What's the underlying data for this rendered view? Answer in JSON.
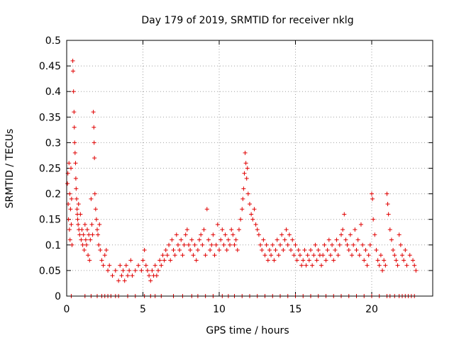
{
  "chart_data": {
    "type": "scatter",
    "title": "Day 179 of 2019, SRMTID for receiver nklg",
    "xlabel": "GPS time / hours",
    "ylabel": "SRMTID / TECUs",
    "xlim": [
      0,
      24
    ],
    "ylim": [
      0,
      0.5
    ],
    "xticks": [
      "0",
      "5",
      "10",
      "15",
      "20"
    ],
    "xtick_values": [
      0,
      5,
      10,
      15,
      20
    ],
    "yticks": [
      "0",
      "0.05",
      "0.1",
      "0.15",
      "0.2",
      "0.25",
      "0.3",
      "0.35",
      "0.4",
      "0.45",
      "0.5"
    ],
    "ytick_values": [
      0,
      0.05,
      0.1,
      0.15,
      0.2,
      0.25,
      0.3,
      0.35,
      0.4,
      0.45,
      0.5
    ],
    "grid": true,
    "legend": false,
    "marker": "plus",
    "color": "#e00000",
    "points": [
      [
        0.05,
        0.22
      ],
      [
        0.08,
        0.24
      ],
      [
        0.1,
        0.18
      ],
      [
        0.12,
        0.15
      ],
      [
        0.15,
        0.26
      ],
      [
        0.18,
        0.13
      ],
      [
        0.2,
        0.2
      ],
      [
        0.22,
        0.11
      ],
      [
        0.25,
        0.17
      ],
      [
        0.28,
        0.25
      ],
      [
        0.3,
        0.14
      ],
      [
        0.32,
        0.19
      ],
      [
        0.35,
        0.1
      ],
      [
        0.4,
        0.46
      ],
      [
        0.42,
        0.44
      ],
      [
        0.45,
        0.4
      ],
      [
        0.48,
        0.36
      ],
      [
        0.5,
        0.33
      ],
      [
        0.52,
        0.3
      ],
      [
        0.55,
        0.28
      ],
      [
        0.58,
        0.26
      ],
      [
        0.6,
        0.23
      ],
      [
        0.62,
        0.21
      ],
      [
        0.65,
        0.19
      ],
      [
        0.68,
        0.17
      ],
      [
        0.7,
        0.16
      ],
      [
        0.72,
        0.15
      ],
      [
        0.75,
        0.14
      ],
      [
        0.78,
        0.18
      ],
      [
        0.8,
        0.13
      ],
      [
        0.85,
        0.12
      ],
      [
        0.9,
        0.16
      ],
      [
        0.95,
        0.11
      ],
      [
        1.0,
        0.13
      ],
      [
        1.05,
        0.1
      ],
      [
        1.1,
        0.12
      ],
      [
        1.15,
        0.09
      ],
      [
        1.2,
        0.14
      ],
      [
        1.25,
        0.11
      ],
      [
        1.3,
        0.1
      ],
      [
        1.35,
        0.13
      ],
      [
        1.4,
        0.08
      ],
      [
        1.45,
        0.12
      ],
      [
        1.5,
        0.07
      ],
      [
        1.55,
        0.11
      ],
      [
        1.6,
        0.19
      ],
      [
        1.65,
        0.14
      ],
      [
        1.7,
        0.12
      ],
      [
        1.75,
        0.36
      ],
      [
        1.78,
        0.33
      ],
      [
        1.8,
        0.3
      ],
      [
        1.82,
        0.27
      ],
      [
        1.85,
        0.2
      ],
      [
        1.9,
        0.17
      ],
      [
        1.95,
        0.15
      ],
      [
        2.0,
        0.13
      ],
      [
        2.05,
        0.12
      ],
      [
        2.1,
        0.1
      ],
      [
        2.15,
        0.14
      ],
      [
        2.2,
        0.09
      ],
      [
        2.3,
        0.07
      ],
      [
        2.4,
        0.06
      ],
      [
        2.5,
        0.08
      ],
      [
        2.6,
        0.09
      ],
      [
        2.7,
        0.05
      ],
      [
        2.8,
        0.06
      ],
      [
        3.0,
        0.04
      ],
      [
        3.2,
        0.05
      ],
      [
        3.4,
        0.03
      ],
      [
        3.5,
        0.06
      ],
      [
        3.6,
        0.04
      ],
      [
        3.7,
        0.05
      ],
      [
        3.8,
        0.03
      ],
      [
        3.9,
        0.06
      ],
      [
        4.0,
        0.04
      ],
      [
        4.1,
        0.05
      ],
      [
        4.2,
        0.07
      ],
      [
        4.3,
        0.04
      ],
      [
        4.5,
        0.05
      ],
      [
        4.7,
        0.06
      ],
      [
        4.9,
        0.05
      ],
      [
        5.0,
        0.07
      ],
      [
        5.1,
        0.09
      ],
      [
        5.2,
        0.06
      ],
      [
        5.3,
        0.05
      ],
      [
        5.4,
        0.04
      ],
      [
        5.5,
        0.03
      ],
      [
        5.6,
        0.05
      ],
      [
        5.7,
        0.04
      ],
      [
        5.8,
        0.06
      ],
      [
        5.9,
        0.04
      ],
      [
        6.0,
        0.05
      ],
      [
        6.1,
        0.07
      ],
      [
        6.2,
        0.06
      ],
      [
        6.3,
        0.08
      ],
      [
        6.4,
        0.07
      ],
      [
        6.5,
        0.09
      ],
      [
        6.6,
        0.08
      ],
      [
        6.7,
        0.1
      ],
      [
        6.8,
        0.07
      ],
      [
        6.9,
        0.11
      ],
      [
        7.0,
        0.09
      ],
      [
        7.1,
        0.08
      ],
      [
        7.2,
        0.12
      ],
      [
        7.3,
        0.1
      ],
      [
        7.4,
        0.09
      ],
      [
        7.5,
        0.11
      ],
      [
        7.6,
        0.08
      ],
      [
        7.7,
        0.1
      ],
      [
        7.8,
        0.12
      ],
      [
        7.9,
        0.13
      ],
      [
        8.0,
        0.1
      ],
      [
        8.1,
        0.09
      ],
      [
        8.2,
        0.11
      ],
      [
        8.3,
        0.08
      ],
      [
        8.4,
        0.1
      ],
      [
        8.5,
        0.07
      ],
      [
        8.6,
        0.09
      ],
      [
        8.7,
        0.11
      ],
      [
        8.8,
        0.12
      ],
      [
        8.9,
        0.1
      ],
      [
        9.0,
        0.13
      ],
      [
        9.1,
        0.08
      ],
      [
        9.2,
        0.17
      ],
      [
        9.3,
        0.11
      ],
      [
        9.4,
        0.09
      ],
      [
        9.5,
        0.1
      ],
      [
        9.6,
        0.12
      ],
      [
        9.7,
        0.08
      ],
      [
        9.8,
        0.1
      ],
      [
        9.9,
        0.14
      ],
      [
        10.0,
        0.09
      ],
      [
        10.1,
        0.11
      ],
      [
        10.2,
        0.13
      ],
      [
        10.3,
        0.1
      ],
      [
        10.4,
        0.12
      ],
      [
        10.5,
        0.09
      ],
      [
        10.6,
        0.11
      ],
      [
        10.7,
        0.1
      ],
      [
        10.8,
        0.13
      ],
      [
        10.9,
        0.12
      ],
      [
        11.0,
        0.1
      ],
      [
        11.1,
        0.11
      ],
      [
        11.2,
        0.09
      ],
      [
        11.3,
        0.13
      ],
      [
        11.4,
        0.15
      ],
      [
        11.5,
        0.17
      ],
      [
        11.55,
        0.19
      ],
      [
        11.6,
        0.21
      ],
      [
        11.65,
        0.24
      ],
      [
        11.7,
        0.28
      ],
      [
        11.75,
        0.26
      ],
      [
        11.8,
        0.23
      ],
      [
        11.85,
        0.25
      ],
      [
        11.9,
        0.2
      ],
      [
        12.0,
        0.18
      ],
      [
        12.1,
        0.16
      ],
      [
        12.2,
        0.15
      ],
      [
        12.3,
        0.17
      ],
      [
        12.4,
        0.14
      ],
      [
        12.5,
        0.13
      ],
      [
        12.6,
        0.12
      ],
      [
        12.7,
        0.1
      ],
      [
        12.8,
        0.09
      ],
      [
        12.9,
        0.11
      ],
      [
        13.0,
        0.08
      ],
      [
        13.1,
        0.1
      ],
      [
        13.2,
        0.07
      ],
      [
        13.3,
        0.09
      ],
      [
        13.4,
        0.08
      ],
      [
        13.5,
        0.1
      ],
      [
        13.6,
        0.07
      ],
      [
        13.7,
        0.09
      ],
      [
        13.8,
        0.11
      ],
      [
        13.9,
        0.08
      ],
      [
        14.0,
        0.1
      ],
      [
        14.1,
        0.12
      ],
      [
        14.2,
        0.09
      ],
      [
        14.3,
        0.11
      ],
      [
        14.4,
        0.13
      ],
      [
        14.5,
        0.1
      ],
      [
        14.6,
        0.12
      ],
      [
        14.7,
        0.09
      ],
      [
        14.8,
        0.11
      ],
      [
        14.9,
        0.08
      ],
      [
        15.0,
        0.1
      ],
      [
        15.1,
        0.07
      ],
      [
        15.2,
        0.09
      ],
      [
        15.3,
        0.08
      ],
      [
        15.4,
        0.06
      ],
      [
        15.5,
        0.07
      ],
      [
        15.6,
        0.09
      ],
      [
        15.7,
        0.06
      ],
      [
        15.8,
        0.08
      ],
      [
        15.9,
        0.07
      ],
      [
        16.0,
        0.09
      ],
      [
        16.1,
        0.06
      ],
      [
        16.2,
        0.08
      ],
      [
        16.3,
        0.1
      ],
      [
        16.4,
        0.07
      ],
      [
        16.5,
        0.09
      ],
      [
        16.6,
        0.08
      ],
      [
        16.7,
        0.06
      ],
      [
        16.8,
        0.08
      ],
      [
        16.9,
        0.1
      ],
      [
        17.0,
        0.07
      ],
      [
        17.1,
        0.09
      ],
      [
        17.2,
        0.11
      ],
      [
        17.3,
        0.08
      ],
      [
        17.4,
        0.1
      ],
      [
        17.5,
        0.07
      ],
      [
        17.6,
        0.09
      ],
      [
        17.7,
        0.11
      ],
      [
        17.8,
        0.08
      ],
      [
        17.9,
        0.1
      ],
      [
        18.0,
        0.12
      ],
      [
        18.1,
        0.13
      ],
      [
        18.2,
        0.16
      ],
      [
        18.3,
        0.11
      ],
      [
        18.4,
        0.1
      ],
      [
        18.5,
        0.09
      ],
      [
        18.6,
        0.12
      ],
      [
        18.7,
        0.08
      ],
      [
        18.8,
        0.1
      ],
      [
        18.9,
        0.13
      ],
      [
        19.0,
        0.09
      ],
      [
        19.1,
        0.11
      ],
      [
        19.2,
        0.08
      ],
      [
        19.3,
        0.14
      ],
      [
        19.4,
        0.1
      ],
      [
        19.5,
        0.07
      ],
      [
        19.6,
        0.09
      ],
      [
        19.7,
        0.06
      ],
      [
        19.8,
        0.08
      ],
      [
        19.9,
        0.1
      ],
      [
        20.0,
        0.2
      ],
      [
        20.05,
        0.19
      ],
      [
        20.1,
        0.15
      ],
      [
        20.2,
        0.12
      ],
      [
        20.3,
        0.09
      ],
      [
        20.4,
        0.07
      ],
      [
        20.5,
        0.06
      ],
      [
        20.6,
        0.08
      ],
      [
        20.7,
        0.05
      ],
      [
        20.8,
        0.07
      ],
      [
        20.9,
        0.06
      ],
      [
        21.0,
        0.2
      ],
      [
        21.05,
        0.18
      ],
      [
        21.1,
        0.16
      ],
      [
        21.2,
        0.13
      ],
      [
        21.3,
        0.11
      ],
      [
        21.4,
        0.09
      ],
      [
        21.5,
        0.08
      ],
      [
        21.6,
        0.07
      ],
      [
        21.7,
        0.06
      ],
      [
        21.8,
        0.12
      ],
      [
        21.9,
        0.1
      ],
      [
        22.0,
        0.08
      ],
      [
        22.1,
        0.07
      ],
      [
        22.2,
        0.09
      ],
      [
        22.3,
        0.06
      ],
      [
        22.5,
        0.08
      ],
      [
        22.7,
        0.07
      ],
      [
        22.8,
        0.06
      ],
      [
        22.9,
        0.05
      ]
    ],
    "zero_points": [
      0.3,
      1.2,
      1.6,
      2.0,
      2.3,
      2.5,
      2.7,
      2.9,
      3.2,
      3.4,
      4.0,
      4.5,
      5.1,
      5.5,
      5.8,
      6.2,
      7.0,
      7.6,
      8.2,
      8.6,
      9.1,
      9.6,
      10.2,
      10.6,
      11.0,
      11.5,
      12.0,
      12.5,
      13.0,
      13.5,
      14.0,
      14.5,
      15.0,
      15.5,
      16.0,
      16.5,
      17.0,
      17.5,
      18.0,
      18.5,
      19.0,
      19.5,
      20.0,
      20.5,
      21.0,
      21.2,
      21.5,
      21.8,
      22.0,
      22.2,
      22.4,
      22.6,
      22.8
    ]
  }
}
